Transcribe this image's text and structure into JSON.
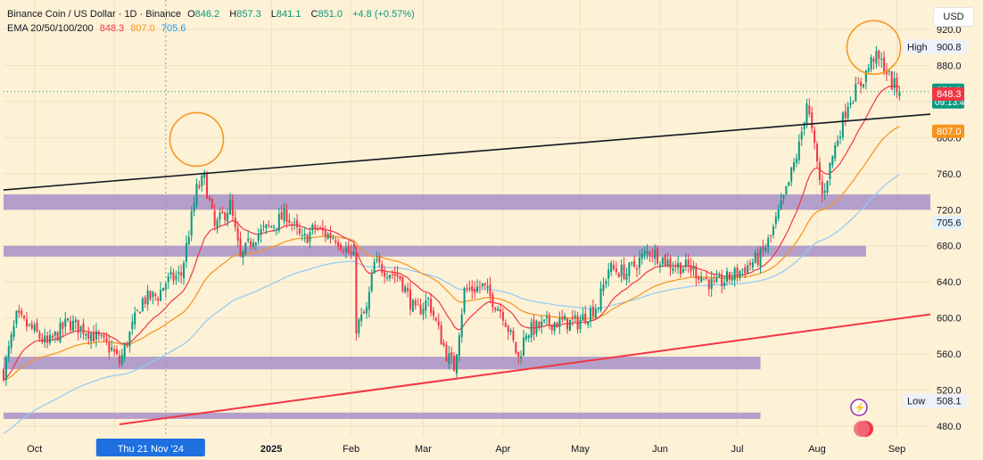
{
  "header": {
    "symbol": "Binance Coin / US Dollar · 1D · Binance",
    "o_label": "O",
    "o": "846.2",
    "h_label": "H",
    "h": "857.3",
    "l_label": "L",
    "l": "841.1",
    "c_label": "C",
    "c": "851.0",
    "change": "+4.8 (+0.57%)",
    "ema_label": "EMA 20/50/100/200",
    "ema20": "848.3",
    "ema50": "807.0",
    "ema100": "705.6"
  },
  "currency_button": "USD",
  "crosshair_label": "Thu 21 Nov '24",
  "colors": {
    "background": "#fdf1d6",
    "up": "#089981",
    "down": "#f23645",
    "ema20": "#f23645",
    "ema50": "#f7931a",
    "ema100": "#90caf9",
    "zone": "#a790c8",
    "trendline": "#131722",
    "support": "#f23645",
    "circle": "#f7931a"
  },
  "chart_data": {
    "type": "candlestick",
    "y_axis": {
      "ticks": [
        480,
        520,
        560,
        600,
        640,
        680,
        720,
        760,
        800,
        840,
        880,
        920
      ],
      "tick_labels": [
        "480.0",
        "520.0",
        "560.0",
        "600.0",
        "640.0",
        "680.0",
        "720.0",
        "760.0",
        "800.0",
        "840.0",
        "880.0",
        "920.0"
      ],
      "range": [
        470,
        930
      ]
    },
    "x_axis": {
      "labels": [
        {
          "label": "Oct",
          "date": "2024-10-01"
        },
        {
          "label": "Nov",
          "date": "2024-11-01"
        },
        {
          "label": "2025",
          "date": "2025-01-01"
        },
        {
          "label": "Feb",
          "date": "2025-02-01"
        },
        {
          "label": "Mar",
          "date": "2025-03-01"
        },
        {
          "label": "Apr",
          "date": "2025-04-01"
        },
        {
          "label": "May",
          "date": "2025-05-01"
        },
        {
          "label": "Jun",
          "date": "2025-06-01"
        },
        {
          "label": "Jul",
          "date": "2025-07-01"
        },
        {
          "label": "Aug",
          "date": "2025-08-01"
        },
        {
          "label": "Sep",
          "date": "2025-09-01"
        }
      ],
      "range": [
        "2024-09-19",
        "2025-09-14"
      ]
    },
    "price_keypoints": [
      [
        "2024-09-19",
        540
      ],
      [
        "2024-09-24",
        600
      ],
      [
        "2024-10-01",
        585
      ],
      [
        "2024-10-06",
        570
      ],
      [
        "2024-10-14",
        595
      ],
      [
        "2024-10-22",
        585
      ],
      [
        "2024-10-31",
        565
      ],
      [
        "2024-11-03",
        550
      ],
      [
        "2024-11-08",
        590
      ],
      [
        "2024-11-12",
        620
      ],
      [
        "2024-11-18",
        625
      ],
      [
        "2024-11-21",
        640
      ],
      [
        "2024-11-27",
        648
      ],
      [
        "2024-12-03",
        742
      ],
      [
        "2024-12-06",
        755
      ],
      [
        "2024-12-10",
        700
      ],
      [
        "2024-12-16",
        725
      ],
      [
        "2024-12-20",
        665
      ],
      [
        "2024-12-25",
        690
      ],
      [
        "2024-12-31",
        700
      ],
      [
        "2025-01-07",
        715
      ],
      [
        "2025-01-13",
        685
      ],
      [
        "2025-01-18",
        700
      ],
      [
        "2025-01-22",
        693
      ],
      [
        "2025-01-26",
        690
      ],
      [
        "2025-02-02",
        665
      ],
      [
        "2025-02-03",
        590
      ],
      [
        "2025-02-07",
        608
      ],
      [
        "2025-02-10",
        660
      ],
      [
        "2025-02-20",
        645
      ],
      [
        "2025-02-26",
        605
      ],
      [
        "2025-03-03",
        620
      ],
      [
        "2025-03-10",
        560
      ],
      [
        "2025-03-13",
        545
      ],
      [
        "2025-03-17",
        630
      ],
      [
        "2025-03-24",
        635
      ],
      [
        "2025-04-01",
        605
      ],
      [
        "2025-04-07",
        555
      ],
      [
        "2025-04-10",
        585
      ],
      [
        "2025-04-20",
        595
      ],
      [
        "2025-04-30",
        595
      ],
      [
        "2025-05-08",
        615
      ],
      [
        "2025-05-12",
        655
      ],
      [
        "2025-05-19",
        650
      ],
      [
        "2025-05-28",
        675
      ],
      [
        "2025-06-05",
        660
      ],
      [
        "2025-06-13",
        655
      ],
      [
        "2025-06-20",
        640
      ],
      [
        "2025-06-22",
        635
      ],
      [
        "2025-07-01",
        650
      ],
      [
        "2025-07-10",
        668
      ],
      [
        "2025-07-14",
        690
      ],
      [
        "2025-07-20",
        740
      ],
      [
        "2025-07-25",
        790
      ],
      [
        "2025-07-28",
        840
      ],
      [
        "2025-08-01",
        770
      ],
      [
        "2025-08-03",
        735
      ],
      [
        "2025-08-07",
        780
      ],
      [
        "2025-08-13",
        840
      ],
      [
        "2025-08-18",
        860
      ],
      [
        "2025-08-23",
        890
      ],
      [
        "2025-08-27",
        880
      ],
      [
        "2025-08-30",
        860
      ],
      [
        "2025-09-02",
        851
      ]
    ],
    "last_close": 851.0,
    "ema_last": {
      "ema20": 848.3,
      "ema50": 807.0,
      "ema100": 705.6
    },
    "price_labels": [
      {
        "value": 851.0,
        "text": "851.0",
        "sub": "09:13:43",
        "color": "#089981"
      },
      {
        "value": 848.3,
        "text": "848.3",
        "color": "#f23645"
      },
      {
        "value": 807.0,
        "text": "807.0",
        "color": "#f7931a"
      },
      {
        "value": 705.6,
        "text": "705.6",
        "color": "#e3f2fd",
        "text_color": "#131722"
      }
    ],
    "high": {
      "label": "High",
      "value": "900.8",
      "y": 900.8
    },
    "low": {
      "label": "Low",
      "value": "508.1",
      "y": 508.1
    },
    "zones": [
      {
        "date_from": "2024-09-19",
        "date_to": "2025-09-14",
        "low": 720,
        "high": 737
      },
      {
        "date_from": "2024-09-19",
        "date_to": "2025-08-20",
        "low": 668,
        "high": 680
      },
      {
        "date_from": "2024-09-19",
        "date_to": "2025-07-10",
        "low": 543,
        "high": 557
      },
      {
        "date_from": "2024-09-19",
        "date_to": "2025-07-10",
        "low": 488,
        "high": 495
      }
    ],
    "trendlines": [
      {
        "date_from": "2024-09-19",
        "from": 742,
        "date_to": "2025-09-14",
        "to": 826,
        "color": "#131722"
      },
      {
        "date_from": "2024-11-03",
        "from": 482,
        "date_to": "2025-09-14",
        "to": 604,
        "color": "#f23645"
      }
    ],
    "highlight_circles": [
      {
        "date": "2024-12-03",
        "price": 798
      },
      {
        "date": "2025-08-23",
        "price": 900
      }
    ],
    "crosshair_date": "2024-11-21"
  }
}
